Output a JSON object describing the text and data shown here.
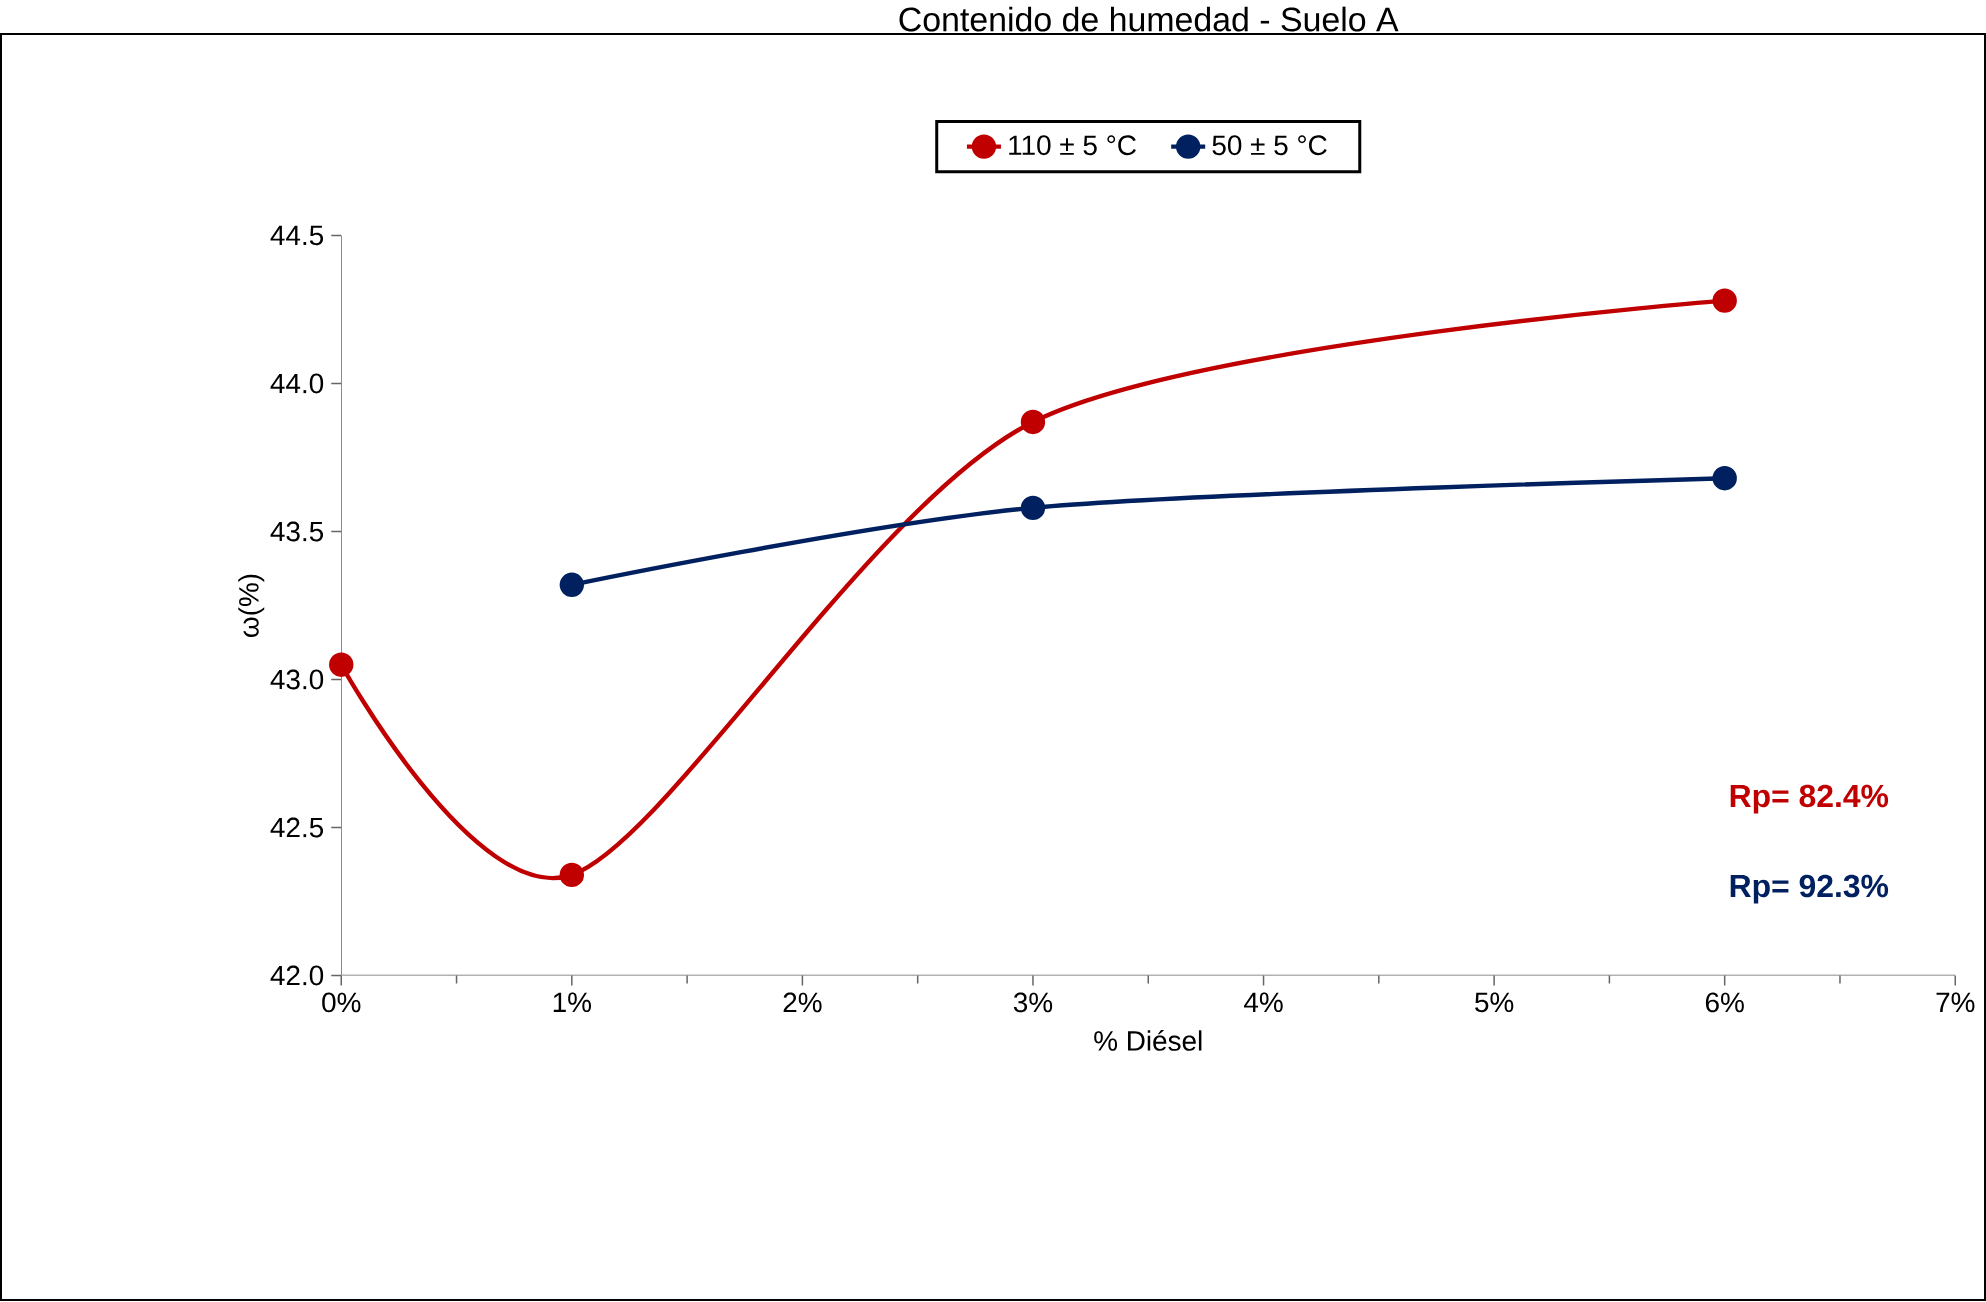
{
  "chart_data": {
    "type": "line",
    "title": "Contenido de humedad - Suelo A",
    "xlabel": "% Diésel",
    "ylabel": "ω(%)",
    "series": [
      {
        "name": "110 ± 5 °C",
        "color": "#c00000",
        "x": [
          0,
          1,
          3,
          6
        ],
        "values": [
          43.05,
          42.34,
          43.87,
          44.28
        ]
      },
      {
        "name": "50 ± 5 °C",
        "color": "#002060",
        "x": [
          1,
          3,
          6
        ],
        "values": [
          43.32,
          43.58,
          43.68
        ]
      }
    ],
    "xlim": [
      0,
      7
    ],
    "xticks": [
      {
        "value": 0,
        "label": "0%"
      },
      {
        "value": 1,
        "label": "1%"
      },
      {
        "value": 2,
        "label": "2%"
      },
      {
        "value": 3,
        "label": "3%"
      },
      {
        "value": 4,
        "label": "4%"
      },
      {
        "value": 5,
        "label": "5%"
      },
      {
        "value": 6,
        "label": "6%"
      },
      {
        "value": 7,
        "label": "7%"
      }
    ],
    "ylim": [
      42.0,
      44.5
    ],
    "yticks": [
      {
        "value": 42.0,
        "label": "42.0"
      },
      {
        "value": 42.5,
        "label": "42.5"
      },
      {
        "value": 43.0,
        "label": "43.0"
      },
      {
        "value": 43.5,
        "label": "43.5"
      },
      {
        "value": 44.0,
        "label": "44.0"
      },
      {
        "value": 44.5,
        "label": "44.5"
      }
    ],
    "annotations": [
      "Rp= 82.4%",
      "Rp= 92.3%"
    ],
    "grid": false,
    "legend": "top",
    "marker": "circle",
    "line_style": "solid"
  }
}
